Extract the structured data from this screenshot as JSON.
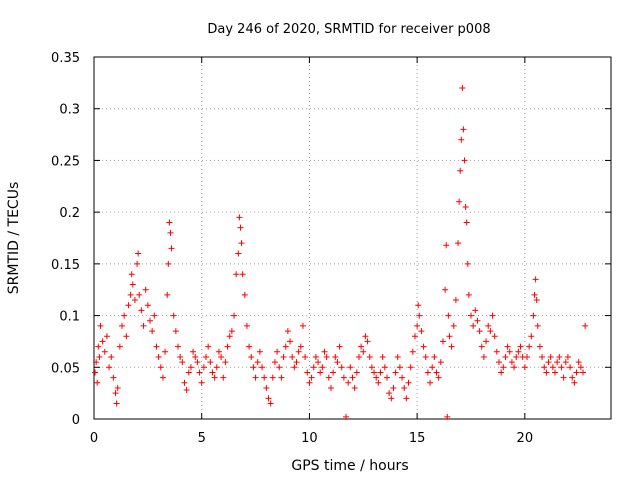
{
  "chart_data": {
    "type": "scatter",
    "title": "Day 246 of 2020, SRMTID for receiver p008",
    "xlabel": "GPS time / hours",
    "ylabel": "SRMTID / TECUs",
    "xlim": [
      0,
      24
    ],
    "ylim": [
      0,
      0.35
    ],
    "x_ticks": [
      0,
      5,
      10,
      15,
      20
    ],
    "x_tick_labels": [
      "0",
      "5",
      "10",
      "15",
      "20"
    ],
    "y_ticks": [
      0,
      0.05,
      0.1,
      0.15,
      0.2,
      0.25,
      0.3,
      0.35
    ],
    "y_tick_labels": [
      "0",
      "0.05",
      "0.1",
      "0.15",
      "0.2",
      "0.25",
      "0.3",
      "0.35"
    ],
    "grid": true,
    "marker": "plus",
    "color": "#ff0000",
    "series": [
      {
        "name": "SRMTID",
        "sampling": "approximate per-point readings, scattered around a baseline of ~0.05 TECU with peaks near 3.5 h, 6.8 h, 17 h",
        "points": [
          [
            0.05,
            0.045
          ],
          [
            0.1,
            0.055
          ],
          [
            0.15,
            0.035
          ],
          [
            0.2,
            0.07
          ],
          [
            0.25,
            0.06
          ],
          [
            0.3,
            0.09
          ],
          [
            0.4,
            0.075
          ],
          [
            0.5,
            0.065
          ],
          [
            0.6,
            0.08
          ],
          [
            0.7,
            0.05
          ],
          [
            0.8,
            0.06
          ],
          [
            0.9,
            0.04
          ],
          [
            1.0,
            0.025
          ],
          [
            1.05,
            0.015
          ],
          [
            1.1,
            0.03
          ],
          [
            1.2,
            0.07
          ],
          [
            1.3,
            0.09
          ],
          [
            1.4,
            0.1
          ],
          [
            1.5,
            0.08
          ],
          [
            1.6,
            0.11
          ],
          [
            1.7,
            0.12
          ],
          [
            1.75,
            0.14
          ],
          [
            1.8,
            0.13
          ],
          [
            1.9,
            0.115
          ],
          [
            2.0,
            0.15
          ],
          [
            2.05,
            0.16
          ],
          [
            2.1,
            0.12
          ],
          [
            2.2,
            0.105
          ],
          [
            2.3,
            0.09
          ],
          [
            2.4,
            0.125
          ],
          [
            2.5,
            0.11
          ],
          [
            2.6,
            0.095
          ],
          [
            2.7,
            0.085
          ],
          [
            2.8,
            0.1
          ],
          [
            2.9,
            0.07
          ],
          [
            3.0,
            0.06
          ],
          [
            3.1,
            0.05
          ],
          [
            3.2,
            0.04
          ],
          [
            3.3,
            0.065
          ],
          [
            3.4,
            0.12
          ],
          [
            3.45,
            0.15
          ],
          [
            3.5,
            0.19
          ],
          [
            3.55,
            0.18
          ],
          [
            3.6,
            0.165
          ],
          [
            3.7,
            0.1
          ],
          [
            3.8,
            0.085
          ],
          [
            3.9,
            0.07
          ],
          [
            4.0,
            0.06
          ],
          [
            4.1,
            0.055
          ],
          [
            4.2,
            0.035
          ],
          [
            4.3,
            0.028
          ],
          [
            4.4,
            0.045
          ],
          [
            4.5,
            0.05
          ],
          [
            4.6,
            0.065
          ],
          [
            4.7,
            0.06
          ],
          [
            4.8,
            0.055
          ],
          [
            4.9,
            0.045
          ],
          [
            5.0,
            0.035
          ],
          [
            5.1,
            0.05
          ],
          [
            5.2,
            0.06
          ],
          [
            5.3,
            0.07
          ],
          [
            5.4,
            0.055
          ],
          [
            5.5,
            0.045
          ],
          [
            5.6,
            0.04
          ],
          [
            5.7,
            0.05
          ],
          [
            5.8,
            0.065
          ],
          [
            5.9,
            0.06
          ],
          [
            6.0,
            0.04
          ],
          [
            6.1,
            0.055
          ],
          [
            6.2,
            0.07
          ],
          [
            6.3,
            0.08
          ],
          [
            6.4,
            0.085
          ],
          [
            6.5,
            0.1
          ],
          [
            6.6,
            0.14
          ],
          [
            6.7,
            0.16
          ],
          [
            6.75,
            0.195
          ],
          [
            6.8,
            0.185
          ],
          [
            6.85,
            0.17
          ],
          [
            6.9,
            0.14
          ],
          [
            7.0,
            0.12
          ],
          [
            7.1,
            0.09
          ],
          [
            7.2,
            0.07
          ],
          [
            7.3,
            0.06
          ],
          [
            7.4,
            0.05
          ],
          [
            7.5,
            0.04
          ],
          [
            7.6,
            0.055
          ],
          [
            7.7,
            0.065
          ],
          [
            7.8,
            0.05
          ],
          [
            7.9,
            0.04
          ],
          [
            8.0,
            0.03
          ],
          [
            8.1,
            0.02
          ],
          [
            8.2,
            0.015
          ],
          [
            8.3,
            0.04
          ],
          [
            8.4,
            0.055
          ],
          [
            8.5,
            0.065
          ],
          [
            8.6,
            0.05
          ],
          [
            8.7,
            0.04
          ],
          [
            8.8,
            0.06
          ],
          [
            8.9,
            0.07
          ],
          [
            9.0,
            0.085
          ],
          [
            9.1,
            0.075
          ],
          [
            9.2,
            0.06
          ],
          [
            9.3,
            0.05
          ],
          [
            9.4,
            0.055
          ],
          [
            9.5,
            0.065
          ],
          [
            9.6,
            0.07
          ],
          [
            9.7,
            0.09
          ],
          [
            9.8,
            0.06
          ],
          [
            9.9,
            0.045
          ],
          [
            10.0,
            0.035
          ],
          [
            10.1,
            0.04
          ],
          [
            10.2,
            0.05
          ],
          [
            10.3,
            0.06
          ],
          [
            10.4,
            0.055
          ],
          [
            10.5,
            0.045
          ],
          [
            10.6,
            0.05
          ],
          [
            10.7,
            0.065
          ],
          [
            10.8,
            0.06
          ],
          [
            10.9,
            0.04
          ],
          [
            11.0,
            0.03
          ],
          [
            11.1,
            0.045
          ],
          [
            11.2,
            0.06
          ],
          [
            11.3,
            0.055
          ],
          [
            11.4,
            0.07
          ],
          [
            11.5,
            0.05
          ],
          [
            11.6,
            0.04
          ],
          [
            11.7,
            0.002
          ],
          [
            11.8,
            0.035
          ],
          [
            11.9,
            0.05
          ],
          [
            12.0,
            0.04
          ],
          [
            12.1,
            0.03
          ],
          [
            12.2,
            0.045
          ],
          [
            12.3,
            0.06
          ],
          [
            12.4,
            0.07
          ],
          [
            12.5,
            0.065
          ],
          [
            12.6,
            0.08
          ],
          [
            12.7,
            0.075
          ],
          [
            12.8,
            0.06
          ],
          [
            12.9,
            0.05
          ],
          [
            13.0,
            0.045
          ],
          [
            13.1,
            0.04
          ],
          [
            13.2,
            0.035
          ],
          [
            13.3,
            0.045
          ],
          [
            13.4,
            0.06
          ],
          [
            13.5,
            0.05
          ],
          [
            13.6,
            0.04
          ],
          [
            13.7,
            0.025
          ],
          [
            13.8,
            0.02
          ],
          [
            13.9,
            0.03
          ],
          [
            14.0,
            0.045
          ],
          [
            14.1,
            0.06
          ],
          [
            14.2,
            0.05
          ],
          [
            14.3,
            0.04
          ],
          [
            14.4,
            0.03
          ],
          [
            14.5,
            0.02
          ],
          [
            14.6,
            0.035
          ],
          [
            14.7,
            0.05
          ],
          [
            14.8,
            0.065
          ],
          [
            14.9,
            0.08
          ],
          [
            15.0,
            0.09
          ],
          [
            15.05,
            0.11
          ],
          [
            15.1,
            0.1
          ],
          [
            15.2,
            0.085
          ],
          [
            15.3,
            0.07
          ],
          [
            15.4,
            0.06
          ],
          [
            15.5,
            0.045
          ],
          [
            15.6,
            0.035
          ],
          [
            15.7,
            0.05
          ],
          [
            15.8,
            0.06
          ],
          [
            15.9,
            0.045
          ],
          [
            16.0,
            0.04
          ],
          [
            16.1,
            0.055
          ],
          [
            16.2,
            0.075
          ],
          [
            16.3,
            0.125
          ],
          [
            16.35,
            0.168
          ],
          [
            16.4,
            0.002
          ],
          [
            16.45,
            0.1
          ],
          [
            16.5,
            0.08
          ],
          [
            16.6,
            0.07
          ],
          [
            16.7,
            0.09
          ],
          [
            16.8,
            0.115
          ],
          [
            16.9,
            0.17
          ],
          [
            16.95,
            0.21
          ],
          [
            17.0,
            0.24
          ],
          [
            17.05,
            0.27
          ],
          [
            17.1,
            0.32
          ],
          [
            17.15,
            0.28
          ],
          [
            17.2,
            0.25
          ],
          [
            17.25,
            0.205
          ],
          [
            17.3,
            0.19
          ],
          [
            17.35,
            0.15
          ],
          [
            17.4,
            0.12
          ],
          [
            17.5,
            0.1
          ],
          [
            17.6,
            0.09
          ],
          [
            17.7,
            0.105
          ],
          [
            17.8,
            0.095
          ],
          [
            17.9,
            0.085
          ],
          [
            18.0,
            0.07
          ],
          [
            18.1,
            0.06
          ],
          [
            18.2,
            0.075
          ],
          [
            18.3,
            0.09
          ],
          [
            18.4,
            0.085
          ],
          [
            18.5,
            0.1
          ],
          [
            18.6,
            0.08
          ],
          [
            18.7,
            0.065
          ],
          [
            18.8,
            0.055
          ],
          [
            18.9,
            0.045
          ],
          [
            19.0,
            0.05
          ],
          [
            19.1,
            0.06
          ],
          [
            19.2,
            0.07
          ],
          [
            19.3,
            0.065
          ],
          [
            19.4,
            0.055
          ],
          [
            19.5,
            0.05
          ],
          [
            19.6,
            0.06
          ],
          [
            19.7,
            0.065
          ],
          [
            19.8,
            0.07
          ],
          [
            19.9,
            0.06
          ],
          [
            20.0,
            0.05
          ],
          [
            20.1,
            0.06
          ],
          [
            20.2,
            0.07
          ],
          [
            20.3,
            0.08
          ],
          [
            20.4,
            0.1
          ],
          [
            20.45,
            0.12
          ],
          [
            20.5,
            0.135
          ],
          [
            20.55,
            0.115
          ],
          [
            20.6,
            0.09
          ],
          [
            20.7,
            0.07
          ],
          [
            20.8,
            0.06
          ],
          [
            20.9,
            0.05
          ],
          [
            21.0,
            0.045
          ],
          [
            21.1,
            0.055
          ],
          [
            21.2,
            0.06
          ],
          [
            21.3,
            0.05
          ],
          [
            21.4,
            0.045
          ],
          [
            21.5,
            0.055
          ],
          [
            21.6,
            0.06
          ],
          [
            21.7,
            0.05
          ],
          [
            21.8,
            0.04
          ],
          [
            21.9,
            0.055
          ],
          [
            22.0,
            0.06
          ],
          [
            22.1,
            0.05
          ],
          [
            22.2,
            0.04
          ],
          [
            22.3,
            0.035
          ],
          [
            22.4,
            0.045
          ],
          [
            22.5,
            0.055
          ],
          [
            22.6,
            0.05
          ],
          [
            22.7,
            0.045
          ],
          [
            22.8,
            0.09
          ]
        ]
      }
    ]
  }
}
